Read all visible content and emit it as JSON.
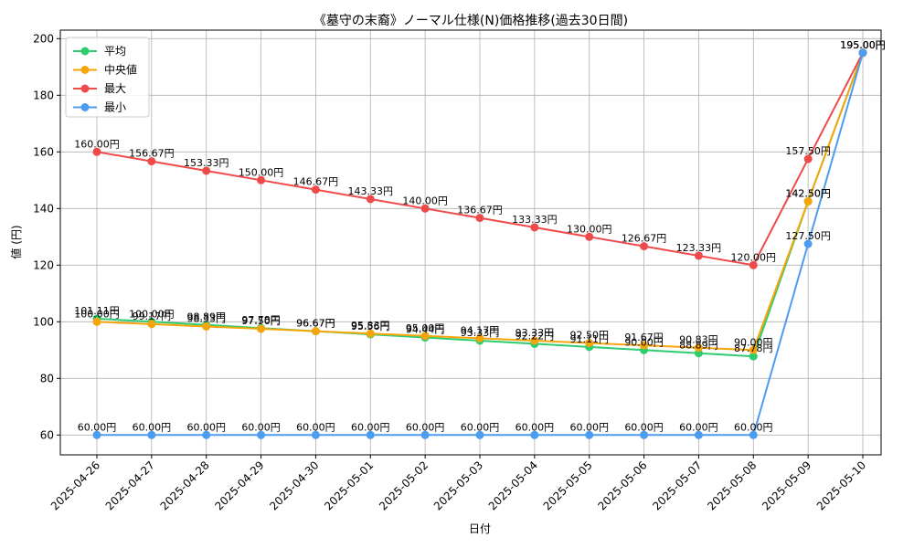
{
  "chart_data": {
    "type": "line",
    "title": "《墓守の末裔》ノーマル仕様(N)価格推移(過去30日間)",
    "xlabel": "日付",
    "ylabel": "値 (円)",
    "ylim": [
      53,
      203
    ],
    "yticks": [
      60,
      80,
      100,
      120,
      140,
      160,
      180,
      200
    ],
    "grid": true,
    "legend_position": "top-left",
    "value_suffix": "円",
    "categories": [
      "2025-04-26",
      "2025-04-27",
      "2025-04-28",
      "2025-04-29",
      "2025-04-30",
      "2025-05-01",
      "2025-05-02",
      "2025-05-03",
      "2025-05-04",
      "2025-05-05",
      "2025-05-06",
      "2025-05-07",
      "2025-05-08",
      "2025-05-09",
      "2025-05-10"
    ],
    "series": [
      {
        "name": "平均",
        "color": "#2ecc71",
        "values": [
          101.11,
          100.0,
          98.89,
          97.78,
          96.67,
          95.56,
          94.44,
          93.33,
          92.22,
          91.11,
          90.0,
          88.89,
          87.78,
          142.5,
          195.0
        ]
      },
      {
        "name": "中央値",
        "color": "#f5a50a",
        "values": [
          100.0,
          99.17,
          98.33,
          97.5,
          96.67,
          95.83,
          95.0,
          94.17,
          93.33,
          92.5,
          91.67,
          90.83,
          90.0,
          142.5,
          195.0
        ]
      },
      {
        "name": "最大",
        "color": "#ef4a4a",
        "values": [
          160.0,
          156.67,
          153.33,
          150.0,
          146.67,
          143.33,
          140.0,
          136.67,
          133.33,
          130.0,
          126.67,
          123.33,
          120.0,
          157.5,
          195.0
        ]
      },
      {
        "name": "最小",
        "color": "#4c9cf0",
        "values": [
          60.0,
          60.0,
          60.0,
          60.0,
          60.0,
          60.0,
          60.0,
          60.0,
          60.0,
          60.0,
          60.0,
          60.0,
          60.0,
          127.5,
          195.0
        ]
      }
    ]
  }
}
